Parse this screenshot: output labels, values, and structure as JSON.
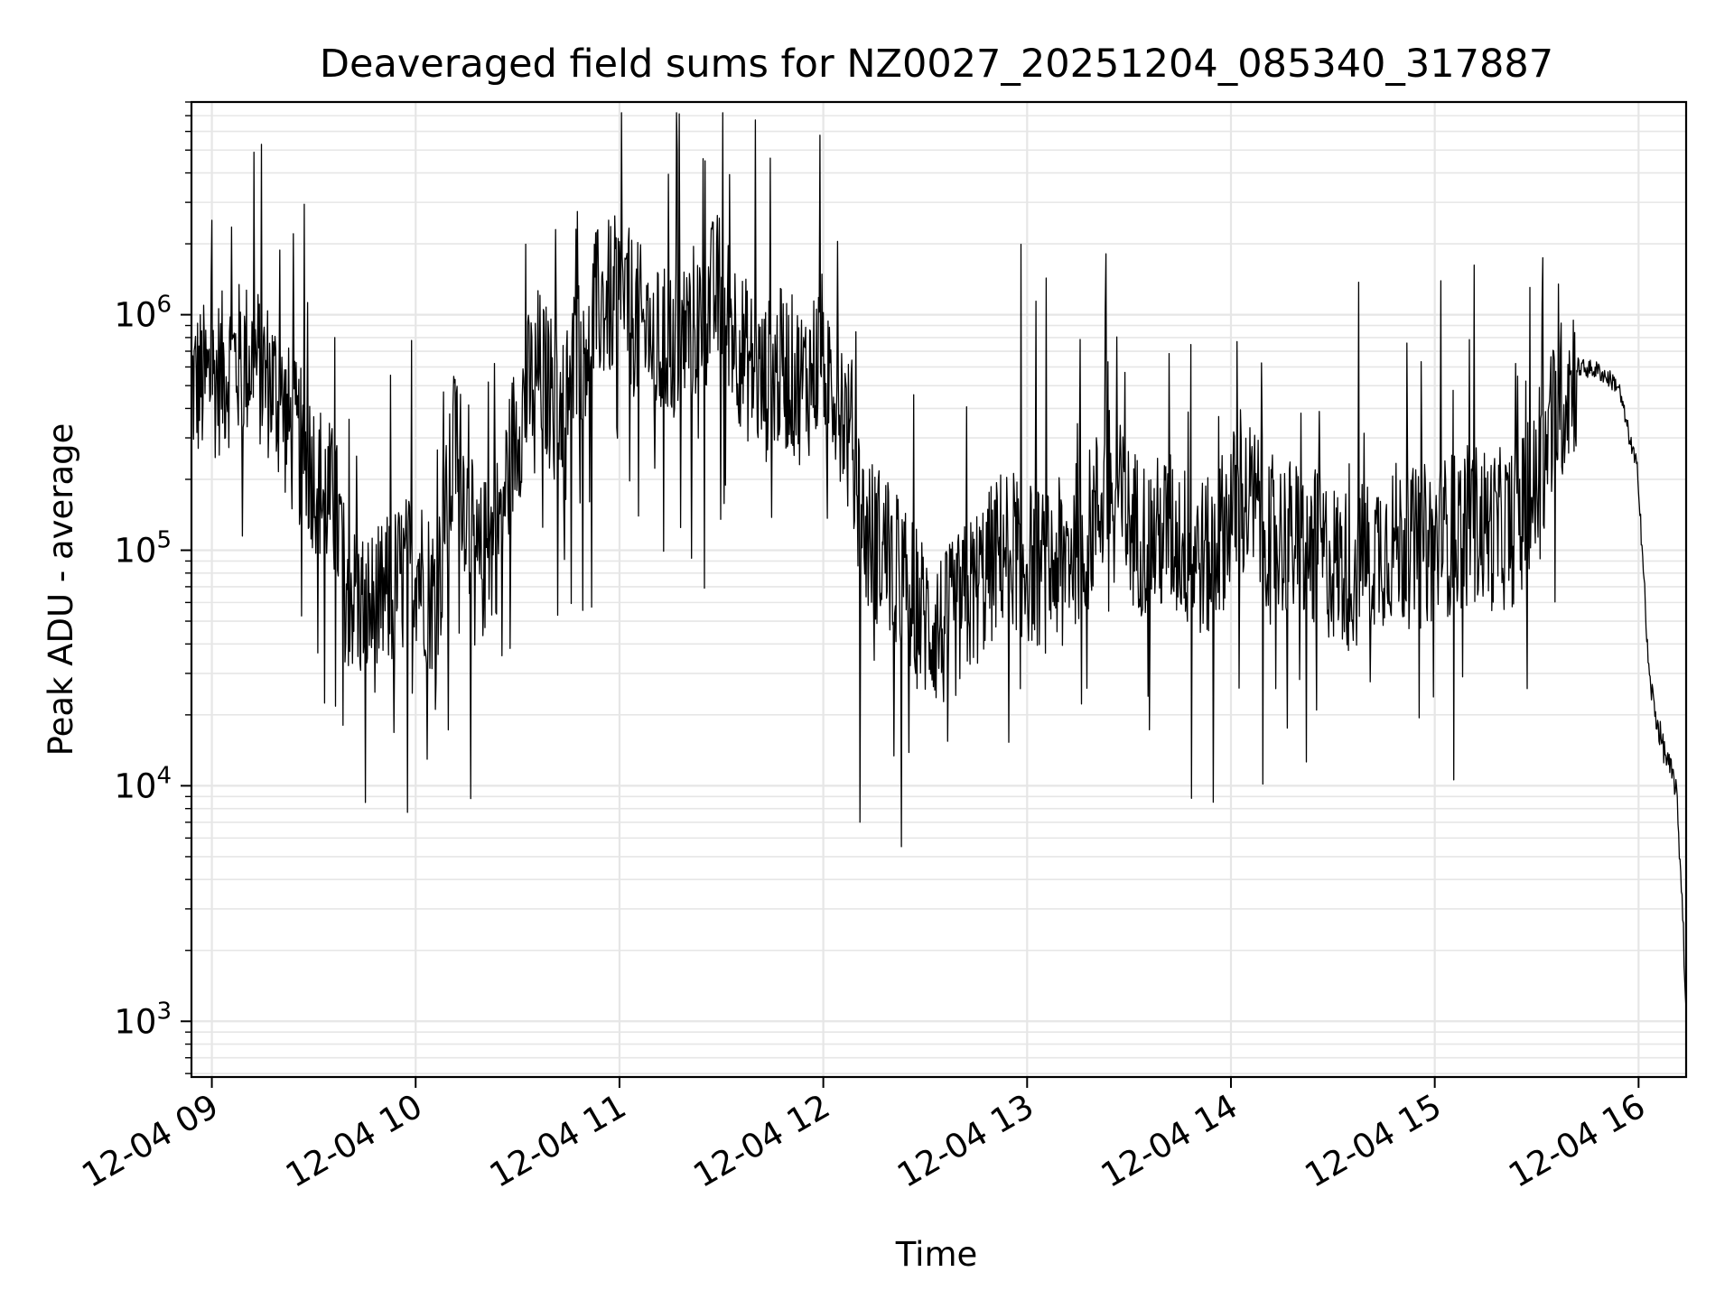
{
  "chart_data": {
    "type": "line",
    "title": "Deaveraged field sums for NZ0027_20251204_085340_317887",
    "xlabel": "Time",
    "ylabel": "Peak ADU - average",
    "yscale": "log",
    "grid": true,
    "legend": "none",
    "line_color": "#000000",
    "grid_color": "#e6e6e6",
    "xlim": [
      "2025-12-04 08:54",
      "2025-12-04 16:14"
    ],
    "ylim": [
      580,
      8000000
    ],
    "x_ticks": [
      {
        "time": "2025-12-04 09:00",
        "label": "12-04 09"
      },
      {
        "time": "2025-12-04 10:00",
        "label": "12-04 10"
      },
      {
        "time": "2025-12-04 11:00",
        "label": "12-04 11"
      },
      {
        "time": "2025-12-04 12:00",
        "label": "12-04 12"
      },
      {
        "time": "2025-12-04 13:00",
        "label": "12-04 13"
      },
      {
        "time": "2025-12-04 14:00",
        "label": "12-04 14"
      },
      {
        "time": "2025-12-04 15:00",
        "label": "12-04 15"
      },
      {
        "time": "2025-12-04 16:00",
        "label": "12-04 16"
      }
    ],
    "y_ticks": [
      {
        "value": 1000,
        "base": "10",
        "exp": "3"
      },
      {
        "value": 10000,
        "base": "10",
        "exp": "4"
      },
      {
        "value": 100000,
        "base": "10",
        "exp": "5"
      },
      {
        "value": 1000000,
        "base": "10",
        "exp": "6"
      }
    ],
    "series": [
      {
        "x": [
          "2025-12-04 08:54",
          "2025-12-04 09:00",
          "2025-12-04 09:06",
          "2025-12-04 09:12",
          "2025-12-04 09:18",
          "2025-12-04 09:24",
          "2025-12-04 09:30",
          "2025-12-04 09:36",
          "2025-12-04 09:42",
          "2025-12-04 09:48",
          "2025-12-04 09:54",
          "2025-12-04 10:00",
          "2025-12-04 10:06",
          "2025-12-04 10:12",
          "2025-12-04 10:18",
          "2025-12-04 10:24",
          "2025-12-04 10:30",
          "2025-12-04 10:36",
          "2025-12-04 10:42",
          "2025-12-04 10:48",
          "2025-12-04 10:54",
          "2025-12-04 11:00",
          "2025-12-04 11:06",
          "2025-12-04 11:12",
          "2025-12-04 11:18",
          "2025-12-04 11:24",
          "2025-12-04 11:30",
          "2025-12-04 11:36",
          "2025-12-04 11:42",
          "2025-12-04 11:48",
          "2025-12-04 11:54",
          "2025-12-04 12:00",
          "2025-12-04 12:06",
          "2025-12-04 12:12",
          "2025-12-04 12:18",
          "2025-12-04 12:24",
          "2025-12-04 12:30",
          "2025-12-04 12:36",
          "2025-12-04 12:42",
          "2025-12-04 12:48",
          "2025-12-04 12:54",
          "2025-12-04 13:00",
          "2025-12-04 13:06",
          "2025-12-04 13:12",
          "2025-12-04 13:18",
          "2025-12-04 13:24",
          "2025-12-04 13:30",
          "2025-12-04 13:36",
          "2025-12-04 13:42",
          "2025-12-04 13:48",
          "2025-12-04 13:54",
          "2025-12-04 14:00",
          "2025-12-04 14:06",
          "2025-12-04 14:12",
          "2025-12-04 14:18",
          "2025-12-04 14:24",
          "2025-12-04 14:30",
          "2025-12-04 14:36",
          "2025-12-04 14:42",
          "2025-12-04 14:48",
          "2025-12-04 14:54",
          "2025-12-04 15:00",
          "2025-12-04 15:06",
          "2025-12-04 15:12",
          "2025-12-04 15:18",
          "2025-12-04 15:24",
          "2025-12-04 15:30",
          "2025-12-04 15:36",
          "2025-12-04 15:42",
          "2025-12-04 15:48",
          "2025-12-04 15:54",
          "2025-12-04 16:00",
          "2025-12-04 16:03",
          "2025-12-04 16:05",
          "2025-12-04 16:07",
          "2025-12-04 16:09",
          "2025-12-04 16:11",
          "2025-12-04 16:13",
          "2025-12-04 16:14"
        ],
        "y": [
          500000,
          520000,
          620000,
          650000,
          500000,
          300000,
          220000,
          150000,
          60000,
          55000,
          70000,
          90000,
          60000,
          300000,
          80000,
          120000,
          350000,
          600000,
          400000,
          700000,
          1100000,
          1200000,
          900000,
          700000,
          800000,
          1000000,
          1300000,
          700000,
          500000,
          600000,
          500000,
          700000,
          400000,
          120000,
          100000,
          70000,
          50000,
          45000,
          60000,
          80000,
          110000,
          90000,
          80000,
          100000,
          120000,
          200000,
          130000,
          110000,
          120000,
          100000,
          90000,
          150000,
          160000,
          120000,
          110000,
          100000,
          90000,
          80000,
          100000,
          110000,
          100000,
          110000,
          120000,
          130000,
          120000,
          130000,
          180000,
          400000,
          600000,
          580000,
          500000,
          200000,
          30000,
          20000,
          15000,
          12000,
          10000,
          3000,
          1000
        ]
      }
    ]
  }
}
